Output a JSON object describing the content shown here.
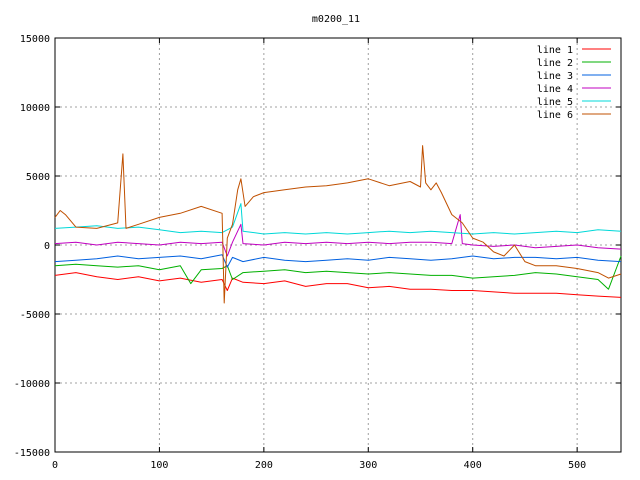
{
  "chart_data": {
    "type": "line",
    "title": "m0200_11",
    "xlabel": "",
    "ylabel": "",
    "xlim": [
      0,
      542
    ],
    "ylim": [
      -15000,
      15000
    ],
    "xticks": [
      0,
      100,
      200,
      300,
      400,
      500
    ],
    "yticks": [
      -15000,
      -10000,
      -5000,
      0,
      5000,
      10000,
      15000
    ],
    "grid": true,
    "legend_position": "top-right",
    "series": [
      {
        "name": "line 1",
        "color": "#ff0000",
        "x": [
          0,
          20,
          40,
          60,
          80,
          100,
          120,
          140,
          160,
          165,
          170,
          180,
          200,
          220,
          240,
          260,
          280,
          300,
          320,
          340,
          360,
          380,
          400,
          420,
          440,
          460,
          480,
          500,
          520,
          542
        ],
        "y": [
          -2200,
          -2000,
          -2300,
          -2500,
          -2300,
          -2600,
          -2400,
          -2700,
          -2500,
          -3300,
          -2400,
          -2700,
          -2800,
          -2600,
          -3000,
          -2800,
          -2800,
          -3100,
          -3000,
          -3200,
          -3200,
          -3300,
          -3300,
          -3400,
          -3500,
          -3500,
          -3500,
          -3600,
          -3700,
          -3800
        ]
      },
      {
        "name": "line 2",
        "color": "#00b000",
        "x": [
          0,
          20,
          40,
          60,
          80,
          100,
          120,
          130,
          140,
          160,
          165,
          170,
          180,
          200,
          220,
          240,
          260,
          280,
          300,
          320,
          340,
          360,
          380,
          400,
          420,
          440,
          460,
          480,
          500,
          520,
          530,
          542
        ],
        "y": [
          -1500,
          -1400,
          -1500,
          -1600,
          -1500,
          -1800,
          -1500,
          -2800,
          -1800,
          -1700,
          -1500,
          -2500,
          -2000,
          -1900,
          -1800,
          -2000,
          -1900,
          -2000,
          -2100,
          -2000,
          -2100,
          -2200,
          -2200,
          -2400,
          -2300,
          -2200,
          -2000,
          -2100,
          -2300,
          -2500,
          -3200,
          -800
        ]
      },
      {
        "name": "line 3",
        "color": "#0060e0",
        "x": [
          0,
          20,
          40,
          60,
          80,
          100,
          120,
          140,
          160,
          165,
          170,
          180,
          200,
          220,
          240,
          260,
          280,
          300,
          320,
          340,
          360,
          380,
          400,
          420,
          440,
          460,
          480,
          500,
          520,
          542
        ],
        "y": [
          -1200,
          -1100,
          -1000,
          -800,
          -1000,
          -900,
          -800,
          -1000,
          -700,
          -1600,
          -900,
          -1200,
          -900,
          -1100,
          -1200,
          -1100,
          -1000,
          -1100,
          -900,
          -1000,
          -1100,
          -1000,
          -800,
          -1000,
          -900,
          -900,
          -1000,
          -900,
          -1100,
          -1200
        ]
      },
      {
        "name": "line 4",
        "color": "#c000c0",
        "x": [
          0,
          20,
          40,
          60,
          80,
          100,
          120,
          140,
          160,
          165,
          170,
          178,
          180,
          200,
          220,
          240,
          260,
          280,
          300,
          320,
          340,
          360,
          380,
          388,
          390,
          400,
          420,
          440,
          460,
          480,
          500,
          520,
          542
        ],
        "y": [
          100,
          200,
          0,
          200,
          100,
          0,
          200,
          100,
          200,
          -800,
          200,
          1500,
          100,
          0,
          200,
          100,
          200,
          100,
          200,
          100,
          200,
          200,
          100,
          2200,
          100,
          0,
          -100,
          0,
          -200,
          -100,
          0,
          -200,
          -300
        ]
      },
      {
        "name": "line 5",
        "color": "#00d8d8",
        "x": [
          0,
          20,
          40,
          60,
          80,
          100,
          120,
          140,
          160,
          170,
          178,
          180,
          200,
          220,
          240,
          260,
          280,
          300,
          320,
          340,
          360,
          380,
          400,
          420,
          440,
          460,
          480,
          500,
          520,
          542
        ],
        "y": [
          1200,
          1300,
          1400,
          1200,
          1300,
          1100,
          900,
          1000,
          900,
          1300,
          3000,
          1000,
          800,
          900,
          800,
          900,
          800,
          900,
          1000,
          900,
          1000,
          900,
          800,
          900,
          800,
          900,
          1000,
          900,
          1100,
          1000
        ]
      },
      {
        "name": "line 6",
        "color": "#c05000",
        "x": [
          0,
          5,
          10,
          20,
          40,
          60,
          65,
          68,
          80,
          100,
          120,
          140,
          160,
          162,
          165,
          170,
          175,
          178,
          182,
          190,
          200,
          220,
          240,
          260,
          280,
          300,
          320,
          340,
          350,
          352,
          355,
          360,
          365,
          370,
          380,
          390,
          400,
          410,
          420,
          430,
          440,
          450,
          460,
          480,
          500,
          520,
          530,
          542
        ],
        "y": [
          2000,
          2500,
          2200,
          1300,
          1200,
          1600,
          6600,
          1200,
          1500,
          2000,
          2300,
          2800,
          2300,
          -4200,
          500,
          1500,
          4000,
          4800,
          2800,
          3500,
          3800,
          4000,
          4200,
          4300,
          4500,
          4800,
          4300,
          4600,
          4200,
          7200,
          4500,
          4000,
          4500,
          3800,
          2200,
          1600,
          500,
          200,
          -500,
          -800,
          0,
          -1200,
          -1500,
          -1500,
          -1700,
          -2000,
          -2400,
          -2100
        ]
      }
    ]
  }
}
